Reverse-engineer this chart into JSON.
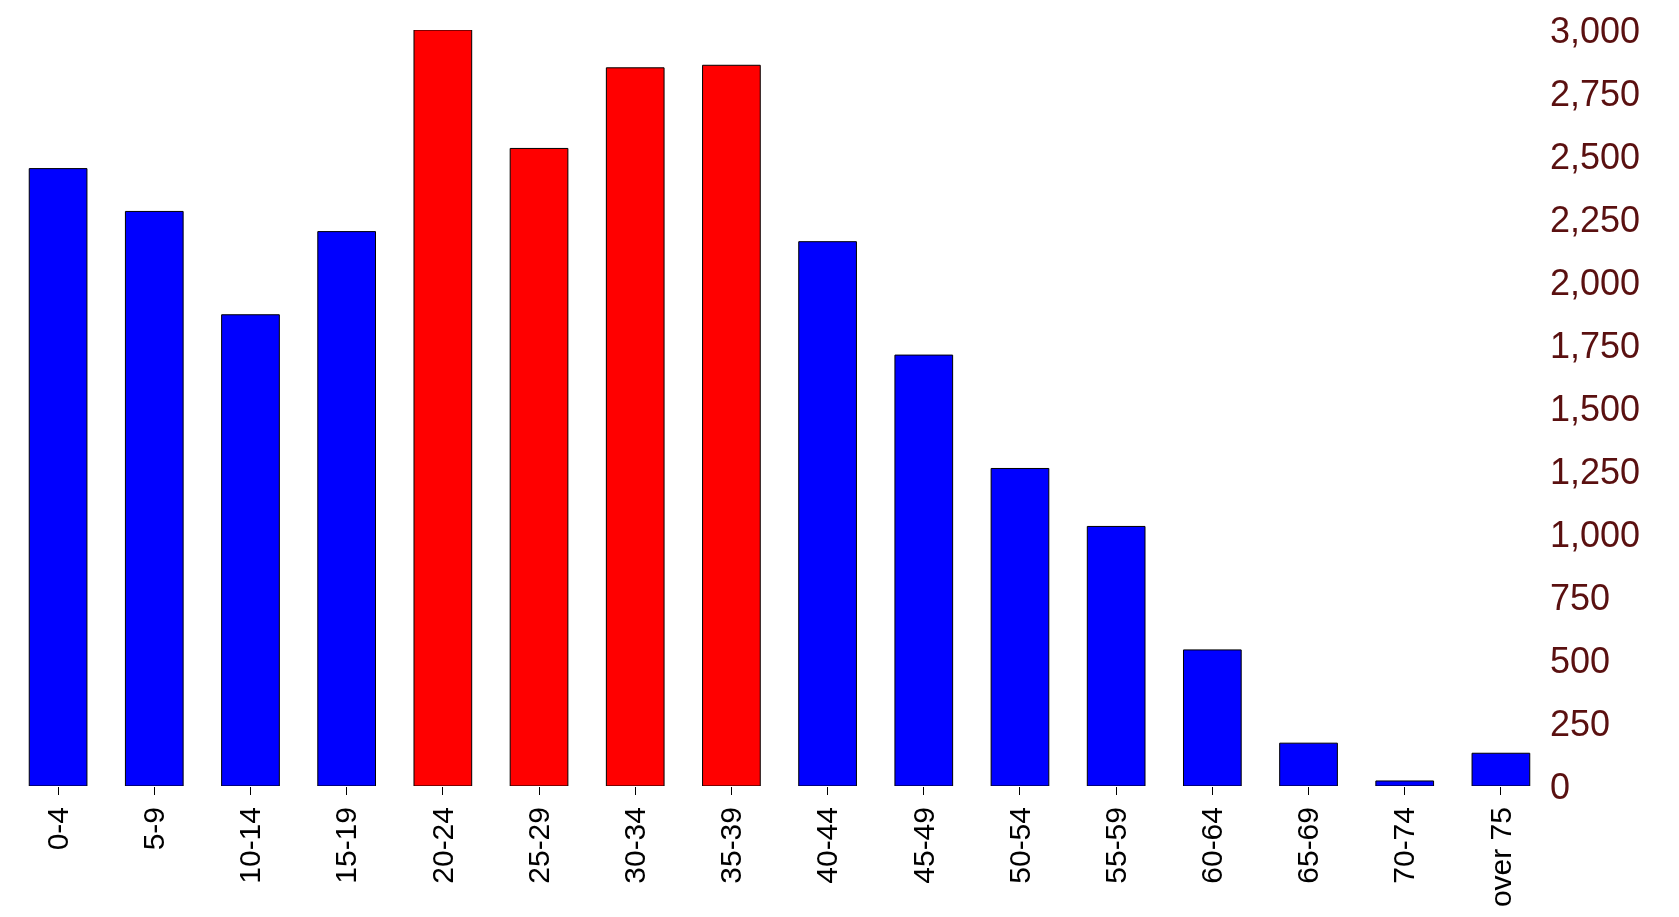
{
  "chart_data": {
    "type": "bar",
    "categories": [
      "0-4",
      "5-9",
      "10-14",
      "15-19",
      "20-24",
      "25-29",
      "30-34",
      "35-39",
      "40-44",
      "45-49",
      "50-54",
      "55-59",
      "60-64",
      "65-69",
      "70-74",
      "over 75"
    ],
    "values": [
      2450,
      2280,
      1870,
      2200,
      3000,
      2530,
      2850,
      2860,
      2160,
      1710,
      1260,
      1030,
      540,
      170,
      20,
      130
    ],
    "colors": [
      "#0000ff",
      "#0000ff",
      "#0000ff",
      "#0000ff",
      "#ff0000",
      "#ff0000",
      "#ff0000",
      "#ff0000",
      "#0000ff",
      "#0000ff",
      "#0000ff",
      "#0000ff",
      "#0000ff",
      "#0000ff",
      "#0000ff",
      "#0000ff"
    ],
    "ylim": [
      0,
      3000
    ],
    "yticks": [
      0,
      250,
      500,
      750,
      {
        "value": 1000,
        "label": "1,000"
      },
      {
        "value": 1250,
        "label": "1,250"
      },
      {
        "value": 1500,
        "label": "1,500"
      },
      {
        "value": 1750,
        "label": "1,750"
      },
      {
        "value": 2000,
        "label": "2,000"
      },
      {
        "value": 2250,
        "label": "2,250"
      },
      {
        "value": 2500,
        "label": "2,500"
      },
      {
        "value": 2750,
        "label": "2,750"
      },
      {
        "value": 3000,
        "label": "3,000"
      }
    ]
  }
}
